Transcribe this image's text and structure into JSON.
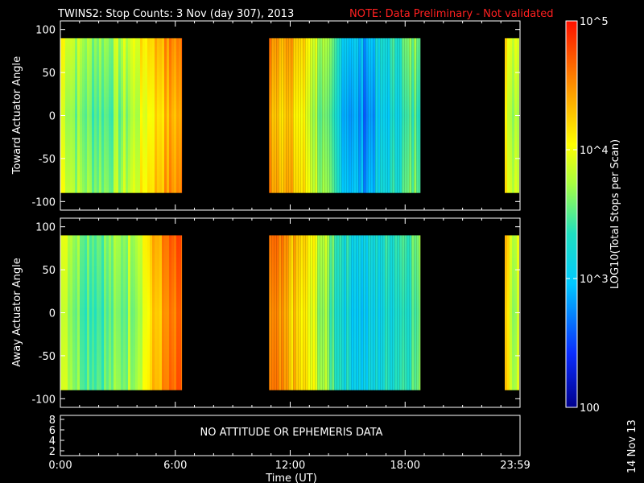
{
  "title": {
    "main": "TWINS2: Stop Counts:  3 Nov (day 307), 2013",
    "note": "NOTE: Data Preliminary - Not validated",
    "note_color": "#ff2020"
  },
  "footer_stamp": "14 Nov 13",
  "status_panel": {
    "message": "NO ATTITUDE OR EPHEMERIS DATA",
    "y_ticks": [
      "8",
      "6",
      "4",
      "2"
    ]
  },
  "x_axis": {
    "label": "Time (UT)",
    "ticks": [
      "0:00",
      "6:00",
      "12:00",
      "18:00",
      "23:59"
    ]
  },
  "colorbar": {
    "label": "LOG10(Total Stops per Scan)",
    "tick_labels": [
      "10^5",
      "10^4",
      "10^3",
      "100"
    ],
    "scale": "log",
    "range": [
      100,
      100000
    ]
  },
  "chart_data": [
    {
      "type": "heatmap",
      "panel": "toward",
      "ylabel": "Toward Actuator Angle",
      "y_ticks": [
        "100",
        "50",
        "0",
        "-50",
        "-100"
      ],
      "ylim": [
        -110,
        110
      ],
      "xlim": [
        0,
        24
      ],
      "data_y_range": [
        -90,
        90
      ],
      "scale": "log",
      "segments": [
        {
          "start_h": 0.0,
          "end_h": 6.35,
          "log10_counts": [
            4.0,
            3.7,
            3.6,
            3.6,
            3.7,
            3.9,
            4.2,
            4.4,
            4.5
          ]
        },
        {
          "start_h": 10.9,
          "end_h": 18.8,
          "log10_counts": [
            4.5,
            4.3,
            4.0,
            3.5,
            3.0,
            2.8,
            3.1,
            3.4,
            3.6
          ]
        },
        {
          "start_h": 23.2,
          "end_h": 24.0,
          "log10_counts": [
            4.3,
            3.6,
            4.1
          ]
        }
      ]
    },
    {
      "type": "heatmap",
      "panel": "away",
      "ylabel": "Away Actuator Angle",
      "y_ticks": [
        "100",
        "50",
        "0",
        "-50",
        "-100"
      ],
      "ylim": [
        -110,
        110
      ],
      "xlim": [
        0,
        24
      ],
      "data_y_range": [
        -90,
        90
      ],
      "scale": "log",
      "segments": [
        {
          "start_h": 0.0,
          "end_h": 6.35,
          "log10_counts": [
            4.0,
            3.6,
            3.5,
            3.5,
            3.6,
            3.8,
            4.2,
            4.5,
            4.6
          ]
        },
        {
          "start_h": 10.9,
          "end_h": 18.8,
          "log10_counts": [
            4.5,
            4.3,
            4.0,
            3.6,
            3.2,
            3.0,
            3.2,
            3.4,
            3.5
          ]
        },
        {
          "start_h": 23.2,
          "end_h": 24.0,
          "log10_counts": [
            4.4,
            3.7,
            4.2
          ]
        }
      ]
    }
  ]
}
